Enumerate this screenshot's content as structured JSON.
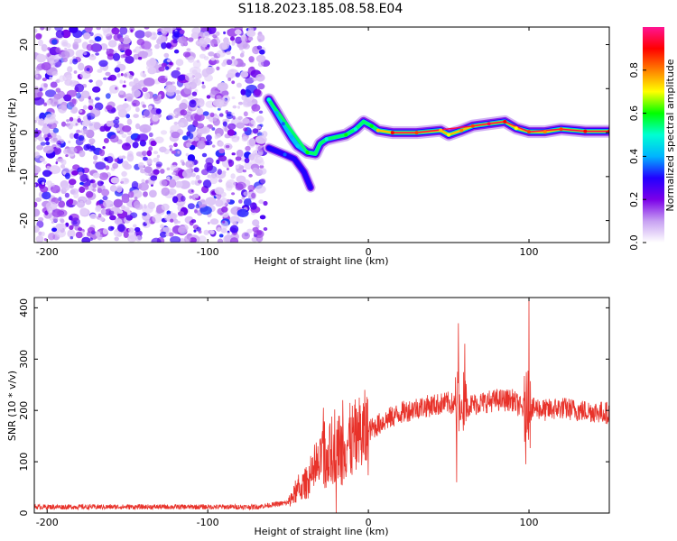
{
  "figure_title": "S118.2023.185.08.58.E04",
  "chart_data": [
    {
      "type": "heatmap",
      "xlabel": "Height of straight line (km)",
      "ylabel": "Frequency (Hz)",
      "xlim": [
        -208,
        150
      ],
      "ylim": [
        -25,
        24
      ],
      "xticks": [
        -200,
        -100,
        0,
        100
      ],
      "yticks": [
        20,
        10,
        0,
        -10,
        -20
      ],
      "colorbar": {
        "label": "Normalized spectral amplitude",
        "range": [
          0,
          1
        ],
        "ticks": [
          0.0,
          0.2,
          0.4,
          0.6,
          0.8
        ],
        "colormap": [
          "#ffffff",
          "#c7a0f2",
          "#7b00e8",
          "#2200ff",
          "#00b4ff",
          "#00ffd2",
          "#00ff00",
          "#ffff00",
          "#ff8000",
          "#ff0000",
          "#ff1493"
        ]
      },
      "noise_region_x": [
        -208,
        -64
      ],
      "ridge": [
        {
          "x": -62,
          "y": 7.5,
          "amp": 0.5
        },
        {
          "x": -57,
          "y": 4.5,
          "amp": 0.4
        },
        {
          "x": -53,
          "y": 2.0,
          "amp": 0.35
        },
        {
          "x": -48,
          "y": -1.0,
          "amp": 0.4
        },
        {
          "x": -44,
          "y": -3.0,
          "amp": 0.45
        },
        {
          "x": -38,
          "y": -4.5,
          "amp": 0.6
        },
        {
          "x": -33,
          "y": -4.8,
          "amp": 0.55
        },
        {
          "x": -30,
          "y": -2.5,
          "amp": 0.55
        },
        {
          "x": -26,
          "y": -1.5,
          "amp": 0.5
        },
        {
          "x": -20,
          "y": -1.0,
          "amp": 0.55
        },
        {
          "x": -14,
          "y": -0.5,
          "amp": 0.6
        },
        {
          "x": -8,
          "y": 0.8,
          "amp": 0.5
        },
        {
          "x": -3,
          "y": 2.5,
          "amp": 0.55
        },
        {
          "x": 2,
          "y": 1.5,
          "amp": 0.6
        },
        {
          "x": 6,
          "y": 0.5,
          "amp": 0.75
        },
        {
          "x": 15,
          "y": 0.0,
          "amp": 0.9
        },
        {
          "x": 30,
          "y": 0.0,
          "amp": 0.85
        },
        {
          "x": 45,
          "y": 0.5,
          "amp": 0.75
        },
        {
          "x": 50,
          "y": -0.5,
          "amp": 0.7
        },
        {
          "x": 58,
          "y": 0.5,
          "amp": 0.8
        },
        {
          "x": 65,
          "y": 1.5,
          "amp": 0.85
        },
        {
          "x": 75,
          "y": 2.0,
          "amp": 0.95
        },
        {
          "x": 85,
          "y": 2.5,
          "amp": 0.9
        },
        {
          "x": 92,
          "y": 1.0,
          "amp": 0.7
        },
        {
          "x": 100,
          "y": 0.2,
          "amp": 0.85
        },
        {
          "x": 110,
          "y": 0.2,
          "amp": 0.8
        },
        {
          "x": 120,
          "y": 0.8,
          "amp": 0.85
        },
        {
          "x": 135,
          "y": 0.3,
          "amp": 0.9
        },
        {
          "x": 150,
          "y": 0.3,
          "amp": 0.9
        }
      ],
      "branch": [
        {
          "x": -62,
          "y": -3.5,
          "amp": 0.3
        },
        {
          "x": -52,
          "y": -5.0,
          "amp": 0.35
        },
        {
          "x": -46,
          "y": -6.0,
          "amp": 0.3
        },
        {
          "x": -40,
          "y": -9.0,
          "amp": 0.3
        },
        {
          "x": -36,
          "y": -12.5,
          "amp": 0.3
        }
      ]
    },
    {
      "type": "line",
      "xlabel": "Height of straight line (km)",
      "ylabel": "SNR (10 * v/v)",
      "xlim": [
        -208,
        150
      ],
      "ylim": [
        0,
        420
      ],
      "xticks": [
        -200,
        -100,
        0,
        100
      ],
      "yticks": [
        0,
        100,
        200,
        300,
        400
      ],
      "series_color": "#e8322a",
      "series": [
        {
          "envelope_x": [
            -208,
            -150,
            -100,
            -70,
            -50,
            -45,
            -40,
            -35,
            -30,
            -25,
            -20,
            -15,
            -10,
            -5,
            0,
            10,
            20,
            30,
            40,
            50,
            55,
            58,
            62,
            70,
            80,
            90,
            95,
            100,
            105,
            110,
            120,
            130,
            140,
            150
          ],
          "envelope_y": [
            12,
            12,
            12,
            12,
            20,
            40,
            55,
            70,
            95,
            110,
            125,
            135,
            140,
            150,
            160,
            180,
            195,
            205,
            210,
            215,
            210,
            200,
            210,
            215,
            220,
            220,
            205,
            200,
            205,
            200,
            205,
            200,
            198,
            195
          ],
          "spikes": [
            {
              "x": 56,
              "y": 370
            },
            {
              "x": 55,
              "y": 60
            },
            {
              "x": 60,
              "y": 330
            },
            {
              "x": 99,
              "y": 300
            },
            {
              "x": 100,
              "y": 420
            },
            {
              "x": 98,
              "y": 95
            },
            {
              "x": -16,
              "y": 220
            },
            {
              "x": -28,
              "y": 205
            },
            {
              "x": -20,
              "y": 0
            }
          ]
        }
      ]
    }
  ]
}
